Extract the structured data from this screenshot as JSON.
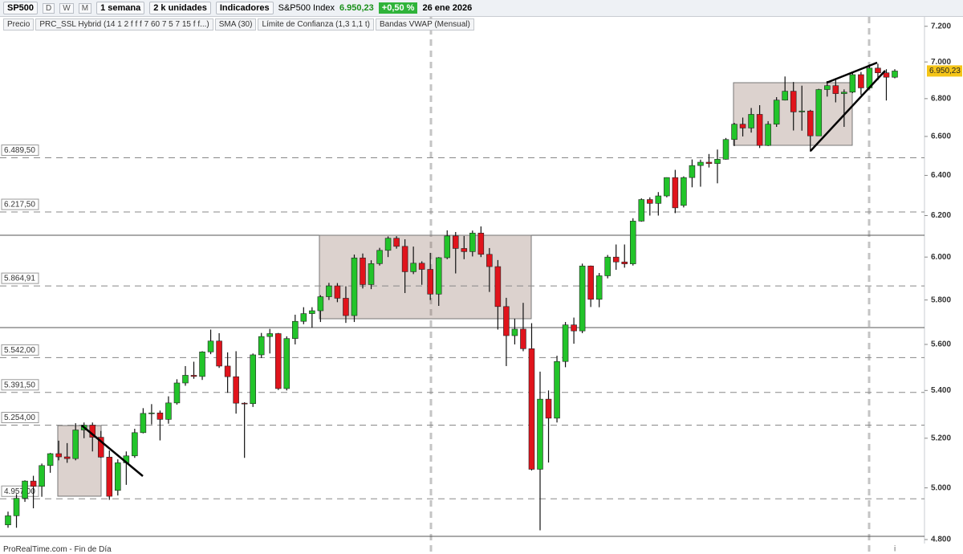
{
  "toolbar": {
    "symbol": "SP500",
    "periods": [
      "D",
      "W",
      "M"
    ],
    "timeframe": "1 semana",
    "units": "2 k unidades",
    "indicators": "Indicadores",
    "instrument": "S&P500 Index",
    "price": "6.950,23",
    "change": "+0,50 %",
    "date": "26 ene 2026"
  },
  "legend": [
    "Precio",
    "PRC_SSL Hybrid (14 1 2 f f f 7 60 7 5 7 15 f f...)",
    "SMA (30)",
    "Límite de Confianza (1,3 1,1 t)",
    "Bandas VWAP (Mensual)"
  ],
  "footer": "ProRealTime.com - Fin de Día",
  "chart_data": {
    "type": "candlestick",
    "log_scale": true,
    "ylim": [
      4800,
      7240
    ],
    "yticks": [
      {
        "value": 7200,
        "label": "7.200"
      },
      {
        "value": 7000,
        "label": "7.000"
      },
      {
        "value": 6800,
        "label": "6.800"
      },
      {
        "value": 6600,
        "label": "6.600"
      },
      {
        "value": 6400,
        "label": "6.400"
      },
      {
        "value": 6200,
        "label": "6.200"
      },
      {
        "value": 6000,
        "label": "6.000"
      },
      {
        "value": 5800,
        "label": "5.800"
      },
      {
        "value": 5600,
        "label": "5.600"
      },
      {
        "value": 5400,
        "label": "5.400"
      },
      {
        "value": 5200,
        "label": "5.200"
      },
      {
        "value": 5000,
        "label": "5.000"
      },
      {
        "value": 4800,
        "label": "4.800"
      }
    ],
    "levels": [
      {
        "value": 6489.5,
        "label": "6.489,50"
      },
      {
        "value": 6217.5,
        "label": "6.217,50"
      },
      {
        "value": 5864.91,
        "label": "5.864,91"
      },
      {
        "value": 5542,
        "label": "5.542,00"
      },
      {
        "value": 5391.5,
        "label": "5.391,50"
      },
      {
        "value": 5254,
        "label": "5.254,00"
      },
      {
        "value": 4957,
        "label": "4.957,00"
      }
    ],
    "last_price": {
      "value": 6950.23,
      "label": "6.950,23"
    },
    "up_color": "#22c42a",
    "down_color": "#e0141c",
    "open": [
      4856,
      4891,
      4959,
      5027,
      5006,
      5089,
      5137,
      5124,
      5117,
      5234,
      5254,
      5204,
      5123,
      4990,
      5100,
      5128,
      5223,
      5303,
      5305,
      5278,
      5347,
      5432,
      5465,
      5460,
      5567,
      5615,
      5505,
      5459,
      5346,
      5344,
      5554,
      5635,
      5648,
      5408,
      5626,
      5703,
      5738,
      5751,
      5815,
      5865,
      5808,
      5729,
      5996,
      5871,
      5969,
      6032,
      6090,
      6051,
      5931,
      5971,
      5942,
      5827,
      5997,
      6101,
      6041,
      6026,
      6115,
      6013,
      5955,
      5770,
      5639,
      5668,
      5581,
      5074,
      5363,
      5283,
      5525,
      5687,
      5660,
      5958,
      5803,
      5912,
      6000,
      5977,
      5968,
      6173,
      6279,
      6260,
      6297,
      6389,
      6250,
      6389,
      6450,
      6467,
      6460,
      6482,
      6584,
      6664,
      6644,
      6716,
      6553,
      6664,
      6792,
      6840,
      6729,
      6734,
      6603,
      6849,
      6870,
      6827,
      6835,
      6930,
      6858,
      6966,
      6940,
      6916
    ],
    "high": [
      4907,
      4975,
      5030,
      5048,
      5097,
      5140,
      5190,
      5180,
      5262,
      5265,
      5265,
      5230,
      5150,
      5114,
      5146,
      5239,
      5325,
      5342,
      5315,
      5375,
      5448,
      5505,
      5524,
      5570,
      5666,
      5650,
      5565,
      5570,
      5350,
      5560,
      5651,
      5669,
      5651,
      5636,
      5733,
      5767,
      5767,
      5822,
      5879,
      5878,
      5863,
      6012,
      6017,
      5985,
      6044,
      6099,
      6100,
      6085,
      6050,
      5980,
      6020,
      6000,
      6128,
      6120,
      6101,
      6127,
      6147,
      6043,
      5986,
      5810,
      5715,
      5787,
      5695,
      5481,
      5400,
      5550,
      5700,
      5720,
      5969,
      5960,
      5925,
      6010,
      6060,
      6060,
      6187,
      6285,
      6290,
      6316,
      6390,
      6428,
      6395,
      6481,
      6480,
      6509,
      6532,
      6592,
      6671,
      6699,
      6750,
      6765,
      6680,
      6808,
      6920,
      6890,
      6870,
      6740,
      6853,
      6895,
      6901,
      6850,
      6945,
      6945,
      6986,
      6990,
      6960,
      6960
    ],
    "low": [
      4845,
      4845,
      4945,
      4920,
      4965,
      5060,
      5110,
      5100,
      5110,
      5200,
      5146,
      5120,
      4953,
      4970,
      5012,
      5120,
      5220,
      5257,
      5191,
      5260,
      5340,
      5420,
      5450,
      5445,
      5557,
      5497,
      5390,
      5302,
      5120,
      5330,
      5540,
      5560,
      5402,
      5400,
      5600,
      5690,
      5674,
      5700,
      5800,
      5790,
      5696,
      5700,
      5853,
      5850,
      5960,
      6000,
      6040,
      5832,
      5920,
      5870,
      5800,
      5773,
      5990,
      5923,
      5990,
      6003,
      6000,
      5837,
      5666,
      5505,
      5600,
      5570,
      5069,
      4835,
      5101,
      5265,
      5500,
      5603,
      5650,
      5768,
      5767,
      5900,
      5940,
      5950,
      5960,
      6170,
      6200,
      6200,
      6290,
      6212,
      6240,
      6340,
      6343,
      6440,
      6360,
      6480,
      6550,
      6600,
      6620,
      6540,
      6550,
      6650,
      6790,
      6631,
      6630,
      6521,
      6620,
      6811,
      6780,
      6650,
      6830,
      6820,
      6850,
      6900,
      6790,
      6910
    ],
    "close": [
      4891,
      4959,
      5027,
      5006,
      5089,
      5137,
      5124,
      5117,
      5234,
      5254,
      5204,
      5123,
      4967,
      5100,
      5128,
      5223,
      5303,
      5305,
      5278,
      5347,
      5432,
      5465,
      5460,
      5567,
      5615,
      5505,
      5459,
      5346,
      5344,
      5554,
      5635,
      5648,
      5408,
      5626,
      5703,
      5738,
      5751,
      5815,
      5865,
      5808,
      5729,
      5996,
      5871,
      5969,
      6032,
      6090,
      6051,
      5931,
      5971,
      5942,
      5827,
      5997,
      6101,
      6041,
      6026,
      6115,
      6013,
      5955,
      5770,
      5639,
      5668,
      5581,
      5074,
      5363,
      5283,
      5525,
      5687,
      5660,
      5958,
      5803,
      5912,
      6000,
      5977,
      5968,
      6173,
      6279,
      6260,
      6297,
      6389,
      6238,
      6389,
      6450,
      6467,
      6460,
      6482,
      6584,
      6664,
      6644,
      6716,
      6553,
      6664,
      6792,
      6840,
      6729,
      6734,
      6603,
      6849,
      6870,
      6827,
      6835,
      6930,
      6858,
      6966,
      6940,
      6916,
      6950
    ]
  }
}
